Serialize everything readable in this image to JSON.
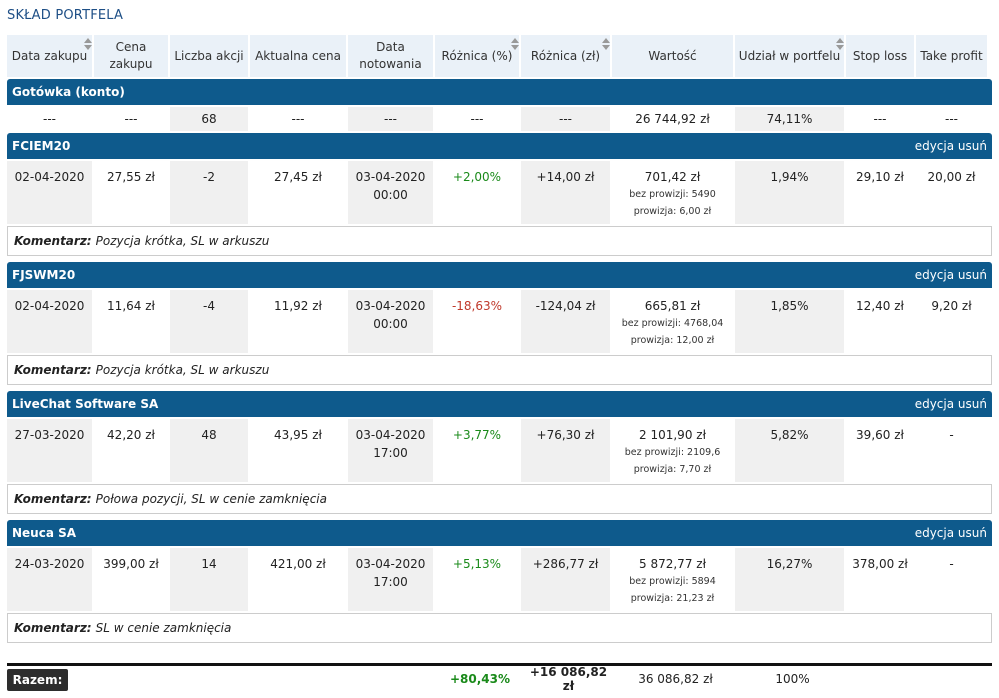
{
  "page_title": "SKŁAD PORTFELA",
  "headers": [
    "Data zakupu",
    "Cena zakupu",
    "Liczba akcji",
    "Aktualna cena",
    "Data notowania",
    "Różnica (%)",
    "Różnica (zł)",
    "Wartość",
    "Udział w portfelu",
    "Stop loss",
    "Take profit"
  ],
  "cash": {
    "title": "Gotówka (konto)",
    "values": [
      "---",
      "---",
      "68",
      "---",
      "---",
      "---",
      "---",
      "26 744,92 zł",
      "74,11%",
      "---",
      "---"
    ]
  },
  "actions": {
    "edit": "edycja",
    "delete": "usuń"
  },
  "comment_label": "Komentarz:",
  "positions": [
    {
      "name": "FCIEM20",
      "date": "02-04-2020",
      "price": "27,55 zł",
      "qty": "-2",
      "current": "27,45 zł",
      "quote_date": "03-04-2020",
      "quote_time": "00:00",
      "diff_pct": "+2,00%",
      "diff_sign": "positive",
      "diff_pln": "+14,00 zł",
      "value": "701,42 zł",
      "no_fee": "bez prowizji: 5490",
      "fee": "prowizja: 6,00 zł",
      "share": "1,94%",
      "stop_loss": "29,10 zł",
      "take_profit": "20,00 zł",
      "comment": "Pozycja krótka, SL w arkuszu"
    },
    {
      "name": "FJSWM20",
      "date": "02-04-2020",
      "price": "11,64 zł",
      "qty": "-4",
      "current": "11,92 zł",
      "quote_date": "03-04-2020",
      "quote_time": "00:00",
      "diff_pct": "-18,63%",
      "diff_sign": "negative",
      "diff_pln": "-124,04 zł",
      "value": "665,81 zł",
      "no_fee": "bez prowizji: 4768,04",
      "fee": "prowizja: 12,00 zł",
      "share": "1,85%",
      "stop_loss": "12,40 zł",
      "take_profit": "9,20 zł",
      "comment": "Pozycja krótka, SL w arkuszu"
    },
    {
      "name": "LiveChat Software SA",
      "date": "27-03-2020",
      "price": "42,20 zł",
      "qty": "48",
      "current": "43,95 zł",
      "quote_date": "03-04-2020",
      "quote_time": "17:00",
      "diff_pct": "+3,77%",
      "diff_sign": "positive",
      "diff_pln": "+76,30 zł",
      "value": "2 101,90 zł",
      "no_fee": "bez prowizji: 2109,6",
      "fee": "prowizja: 7,70 zł",
      "share": "5,82%",
      "stop_loss": "39,60 zł",
      "take_profit": "-",
      "comment": "Połowa pozycji, SL w cenie zamknięcia"
    },
    {
      "name": "Neuca SA",
      "date": "24-03-2020",
      "price": "399,00 zł",
      "qty": "14",
      "current": "421,00 zł",
      "quote_date": "03-04-2020",
      "quote_time": "17:00",
      "diff_pct": "+5,13%",
      "diff_sign": "positive",
      "diff_pln": "+286,77 zł",
      "value": "5 872,77 zł",
      "no_fee": "bez prowizji: 5894",
      "fee": "prowizja: 21,23 zł",
      "share": "16,27%",
      "stop_loss": "378,00 zł",
      "take_profit": "-",
      "comment": "SL w cenie zamknięcia"
    }
  ],
  "summary": {
    "label": "Razem:",
    "diff_pct": "+80,43%",
    "diff_pln": "+16 086,82 zł",
    "value": "36 086,82 zł",
    "share": "100%"
  },
  "colors": {
    "header_bar": "#0e5a8c",
    "positive": "#1a8a1a",
    "negative": "#c0392b",
    "title": "#1e4f86"
  }
}
